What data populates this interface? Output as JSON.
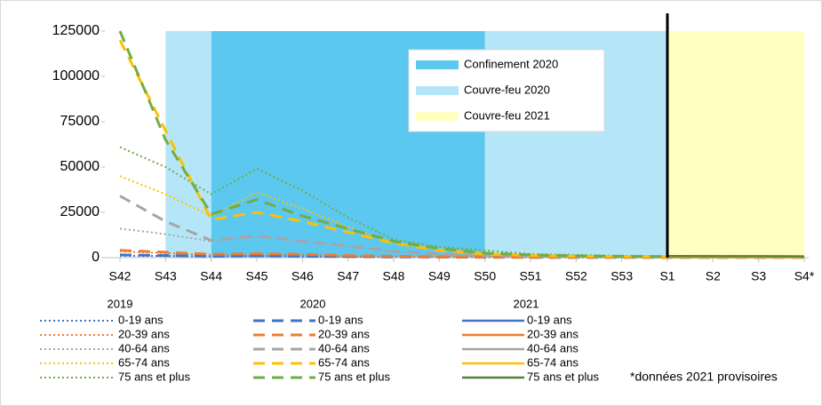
{
  "chart_data": {
    "type": "line",
    "categories": [
      "S42",
      "S43",
      "S44",
      "S45",
      "S46",
      "S47",
      "S48",
      "S49",
      "S50",
      "S51",
      "S52",
      "S53",
      "S1",
      "S2",
      "S3",
      "S4*"
    ],
    "ylim": [
      0,
      125000
    ],
    "yticks": [
      0,
      25000,
      50000,
      75000,
      100000,
      125000
    ],
    "bands": [
      {
        "name": "Confinement 2020",
        "color": "#5cc8f0",
        "from": "S44",
        "to": "S50"
      },
      {
        "name": "Couvre-feu 2020",
        "color": "#b5e6f8",
        "from": "S43",
        "to": "S44"
      },
      {
        "name": "Couvre-feu 2021",
        "color": "#ffffc2",
        "from": "S1",
        "to": "S4*"
      }
    ],
    "extra_band": {
      "color": "#b5e6f8",
      "from": "S50",
      "to": "S1"
    },
    "marker_line": "S1",
    "years": [
      "2019",
      "2020",
      "2021"
    ],
    "note": "*données 2021 provisoires",
    "series": [
      {
        "name": "0-19 ans",
        "color": "#4472c4",
        "dash": "dotted",
        "values": [
          1000,
          900,
          700,
          800,
          700,
          500,
          400,
          300,
          200,
          150,
          100,
          100,
          100,
          100,
          100,
          100
        ]
      },
      {
        "name": "20-39 ans",
        "color": "#ed7d31",
        "dash": "dotted",
        "values": [
          3500,
          2500,
          1500,
          1800,
          1500,
          1000,
          700,
          400,
          300,
          200,
          150,
          100,
          100,
          100,
          100,
          100
        ]
      },
      {
        "name": "40-64 ans",
        "color": "#a5a5a5",
        "dash": "dotted",
        "values": [
          16000,
          13000,
          9000,
          11500,
          9000,
          6000,
          3500,
          2000,
          1200,
          700,
          500,
          400,
          300,
          300,
          300,
          300
        ]
      },
      {
        "name": "65-74 ans",
        "color": "#ffc000",
        "dash": "dotted",
        "values": [
          45000,
          35000,
          23000,
          36000,
          27000,
          17000,
          8000,
          4500,
          2500,
          1300,
          900,
          700,
          500,
          500,
          400,
          400
        ]
      },
      {
        "name": "75 ans et plus",
        "color": "#70ad47",
        "dash": "dotted",
        "values": [
          61000,
          50000,
          35000,
          49000,
          37000,
          22000,
          10000,
          6000,
          4000,
          2000,
          1500,
          1000,
          900,
          800,
          700,
          700
        ]
      },
      {
        "name": "0-19 ans",
        "color": "#4472c4",
        "dash": "dashed",
        "values": [
          1500,
          1200,
          800,
          1000,
          800,
          600,
          400,
          300,
          200,
          150,
          100,
          100,
          100,
          100,
          100,
          100
        ]
      },
      {
        "name": "20-39 ans",
        "color": "#ed7d31",
        "dash": "dashed",
        "values": [
          4000,
          3000,
          1800,
          2200,
          1800,
          1200,
          800,
          500,
          300,
          200,
          150,
          100,
          100,
          100,
          100,
          100
        ]
      },
      {
        "name": "40-64 ans",
        "color": "#a5a5a5",
        "dash": "dashed",
        "values": [
          34000,
          20000,
          9500,
          12000,
          9000,
          6500,
          3500,
          2000,
          1200,
          800,
          500,
          400,
          300,
          300,
          300,
          300
        ]
      },
      {
        "name": "65-74 ans",
        "color": "#ffc000",
        "dash": "dashed",
        "values": [
          120000,
          70000,
          21000,
          25000,
          20000,
          14000,
          8000,
          4000,
          2000,
          1200,
          800,
          600,
          500,
          500,
          400,
          400
        ]
      },
      {
        "name": "75 ans et plus",
        "color": "#70ad47",
        "dash": "dashed",
        "values": [
          125000,
          65000,
          24000,
          32000,
          23000,
          16000,
          9000,
          5000,
          2500,
          1500,
          1000,
          800,
          600,
          600,
          500,
          500
        ]
      },
      {
        "name": "0-19 ans",
        "color": "#4472c4",
        "dash": "solid",
        "values": [
          null,
          null,
          null,
          null,
          null,
          null,
          null,
          null,
          null,
          null,
          null,
          null,
          100,
          100,
          100,
          100
        ]
      },
      {
        "name": "20-39 ans",
        "color": "#ed7d31",
        "dash": "solid",
        "values": [
          null,
          null,
          null,
          null,
          null,
          null,
          null,
          null,
          null,
          null,
          null,
          null,
          150,
          150,
          150,
          150
        ]
      },
      {
        "name": "40-64 ans",
        "color": "#a5a5a5",
        "dash": "solid",
        "values": [
          null,
          null,
          null,
          null,
          null,
          null,
          null,
          null,
          null,
          null,
          null,
          null,
          300,
          300,
          300,
          300
        ]
      },
      {
        "name": "65-74 ans",
        "color": "#ffc000",
        "dash": "solid",
        "values": [
          null,
          null,
          null,
          null,
          null,
          null,
          null,
          null,
          null,
          null,
          null,
          null,
          500,
          500,
          450,
          450
        ]
      },
      {
        "name": "75 ans et plus",
        "color": "#548235",
        "dash": "solid",
        "values": [
          null,
          null,
          null,
          null,
          null,
          null,
          null,
          null,
          null,
          null,
          null,
          null,
          900,
          800,
          800,
          700
        ]
      }
    ]
  }
}
